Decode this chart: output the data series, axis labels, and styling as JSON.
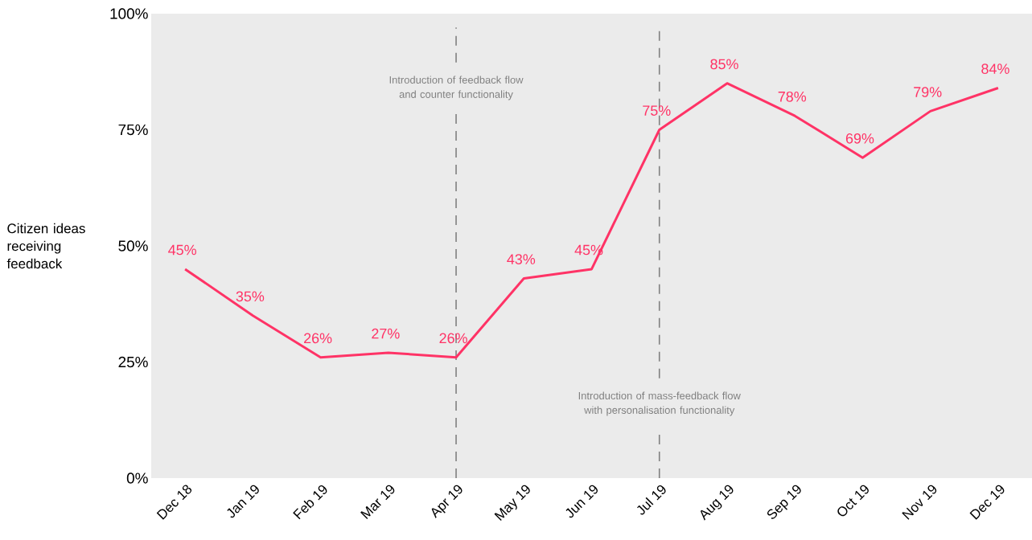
{
  "chart_data": {
    "type": "line",
    "ylabel": "Citizen ideas receiving feedback",
    "categories": [
      "Dec 18",
      "Jan 19",
      "Feb 19",
      "Mar 19",
      "Apr 19",
      "May 19",
      "Jun 19",
      "Jul 19",
      "Aug 19",
      "Sep 19",
      "Oct 19",
      "Nov 19",
      "Dec 19"
    ],
    "series": [
      {
        "color": "#ff3366",
        "values": [
          45,
          35,
          26,
          27,
          26,
          43,
          45,
          75,
          85,
          78,
          69,
          79,
          84
        ],
        "value_labels": [
          "45%",
          "35%",
          "26%",
          "27%",
          "26%",
          "43%",
          "45%",
          "75%",
          "85%",
          "78%",
          "69%",
          "79%",
          "84%"
        ]
      }
    ],
    "ylim": [
      0,
      100
    ],
    "yticks": [
      {
        "value": 0,
        "label": "0%"
      },
      {
        "value": 25,
        "label": "25%"
      },
      {
        "value": 50,
        "label": "50%"
      },
      {
        "value": 75,
        "label": "75%"
      },
      {
        "value": 100,
        "label": "100%"
      }
    ],
    "ref_lines": [
      {
        "axis": "x",
        "value": "Apr 19",
        "label": "Introduction of feedback flow and counter functionality",
        "color": "#808080",
        "line_style": "dashed"
      },
      {
        "axis": "x",
        "value": "Jul 19",
        "label": "Introduction of mass-feedback flow with personalisation functionality",
        "color": "#808080",
        "line_style": "dashed"
      }
    ],
    "grid": false,
    "marker": "none",
    "line_style": "solid"
  }
}
